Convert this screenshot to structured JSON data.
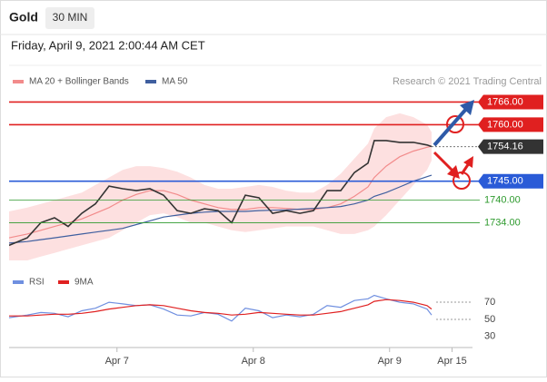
{
  "header": {
    "symbol": "Gold",
    "interval": "30 MIN",
    "datetime": "Friday, April 9, 2021 2:00:44 AM CET",
    "credit": "Research © 2021 Trading Central"
  },
  "chart_data": [
    {
      "type": "line",
      "x": [
        0,
        3.2,
        5.6,
        8,
        10.4,
        12.8,
        15.2,
        17.6,
        20,
        22.4,
        24.8,
        27.2,
        29.6,
        32,
        34.4,
        36.8,
        39.2,
        41.6,
        44,
        46.4,
        48.8,
        51.2,
        53.6,
        56,
        58.4,
        60.8,
        63.2,
        64.3,
        66.4,
        68.8,
        71.2,
        73.6,
        74.4
      ],
      "xlim": [
        0,
        81.6
      ],
      "xticks": [
        {
          "value": 19,
          "label": "Apr 7"
        },
        {
          "value": 43,
          "label": "Apr 8"
        },
        {
          "value": 67,
          "label": "Apr 9"
        },
        {
          "value": 78,
          "label": "Apr 15"
        }
      ],
      "ylim": [
        1724,
        1769
      ],
      "price": {
        "color": "#333333",
        "values": [
          1728,
          1730,
          1734,
          1735.3,
          1733,
          1736.5,
          1739,
          1743.7,
          1743,
          1742.5,
          1743,
          1741.3,
          1737.2,
          1736.5,
          1737.7,
          1737.2,
          1734,
          1741.3,
          1740.6,
          1736.5,
          1737.2,
          1736.5,
          1737.2,
          1742.5,
          1742.5,
          1747.3,
          1749.8,
          1755.8,
          1755.8,
          1755.3,
          1755.3,
          1754.6,
          1754.2
        ]
      },
      "series": [
        {
          "name": "MA 20 + Bollinger Bands",
          "color": "#f28b8b",
          "band_color": "#fde0e0",
          "values": [
            1730,
            1731,
            1732,
            1733,
            1734,
            1735,
            1736.5,
            1738,
            1740,
            1741.5,
            1742.5,
            1742.5,
            1741.5,
            1740,
            1739,
            1738,
            1737.5,
            1737.5,
            1738,
            1738,
            1737.8,
            1737.5,
            1737.5,
            1738,
            1739,
            1741,
            1743.5,
            1746,
            1749,
            1751.5,
            1753,
            1754,
            1754.3
          ],
          "upper": [
            1737,
            1738,
            1739,
            1740,
            1741,
            1742,
            1744,
            1746,
            1748,
            1749,
            1749,
            1748.5,
            1747.5,
            1746,
            1744,
            1743,
            1743,
            1743.5,
            1744,
            1743.5,
            1742.5,
            1742,
            1742,
            1744,
            1747,
            1751,
            1755,
            1759,
            1762,
            1763,
            1762,
            1760,
            1758
          ],
          "lower": [
            1723,
            1724,
            1725,
            1726,
            1727,
            1728,
            1729,
            1730,
            1732,
            1734,
            1736,
            1736.5,
            1735.5,
            1734,
            1734,
            1733,
            1732,
            1731.5,
            1732,
            1732.5,
            1733,
            1733,
            1733,
            1732,
            1731,
            1731,
            1732,
            1733,
            1736,
            1740,
            1744,
            1748,
            1750.5
          ]
        },
        {
          "name": "MA 50",
          "color": "#3f5f9f",
          "values": [
            1728.6,
            1729,
            1729.5,
            1730,
            1730.5,
            1731,
            1731.5,
            1732,
            1732.5,
            1733.5,
            1734.5,
            1735.5,
            1736,
            1736.5,
            1736.8,
            1737,
            1737,
            1737,
            1737.2,
            1737.3,
            1737.4,
            1737.6,
            1737.8,
            1738,
            1738.3,
            1739,
            1740,
            1741,
            1742,
            1743.5,
            1745,
            1746.2,
            1746.6
          ]
        }
      ],
      "levels": [
        {
          "value": 1766,
          "label": "1766.00",
          "color": "#e02020",
          "style": "box"
        },
        {
          "value": 1760,
          "label": "1760.00",
          "color": "#e02020",
          "style": "box"
        },
        {
          "value": 1754.16,
          "label": "1754.16",
          "color": "#333333",
          "style": "current"
        },
        {
          "value": 1745,
          "label": "1745.00",
          "color": "#2a5bd7",
          "style": "box"
        },
        {
          "value": 1740,
          "label": "1740.00",
          "color": "#2e9a2e",
          "style": "text"
        },
        {
          "value": 1734,
          "label": "1734.00",
          "color": "#2e9a2e",
          "style": "text"
        }
      ]
    },
    {
      "type": "line",
      "x": [
        0,
        3.2,
        5.6,
        8,
        10.4,
        12.8,
        15.2,
        17.6,
        20,
        22.4,
        24.8,
        27.2,
        29.6,
        32,
        34.4,
        36.8,
        39.2,
        41.6,
        44,
        46.4,
        48.8,
        51.2,
        53.6,
        56,
        58.4,
        60.8,
        63.2,
        64.3,
        66.4,
        68.8,
        71.2,
        73.6,
        74.4
      ],
      "xlim": [
        0,
        81.6
      ],
      "ylim": [
        15,
        105
      ],
      "yticks": [
        30,
        50,
        70
      ],
      "series": [
        {
          "name": "RSI",
          "color": "#6f8fe0",
          "values": [
            52,
            55,
            58,
            57,
            53,
            60,
            63,
            70,
            68,
            66,
            67,
            62,
            55,
            54,
            58,
            56,
            48,
            63,
            60,
            52,
            55,
            53,
            56,
            66,
            64,
            72,
            74,
            78,
            74,
            70,
            68,
            62,
            55
          ]
        },
        {
          "name": "9MA",
          "color": "#e02020",
          "values": [
            54,
            54,
            55,
            56,
            56,
            57,
            59,
            62,
            64,
            66,
            67,
            66,
            63,
            60,
            58,
            57,
            55,
            56,
            58,
            57,
            56,
            55,
            55,
            57,
            59,
            63,
            67,
            71,
            73,
            72,
            70,
            66,
            62
          ]
        }
      ]
    }
  ]
}
